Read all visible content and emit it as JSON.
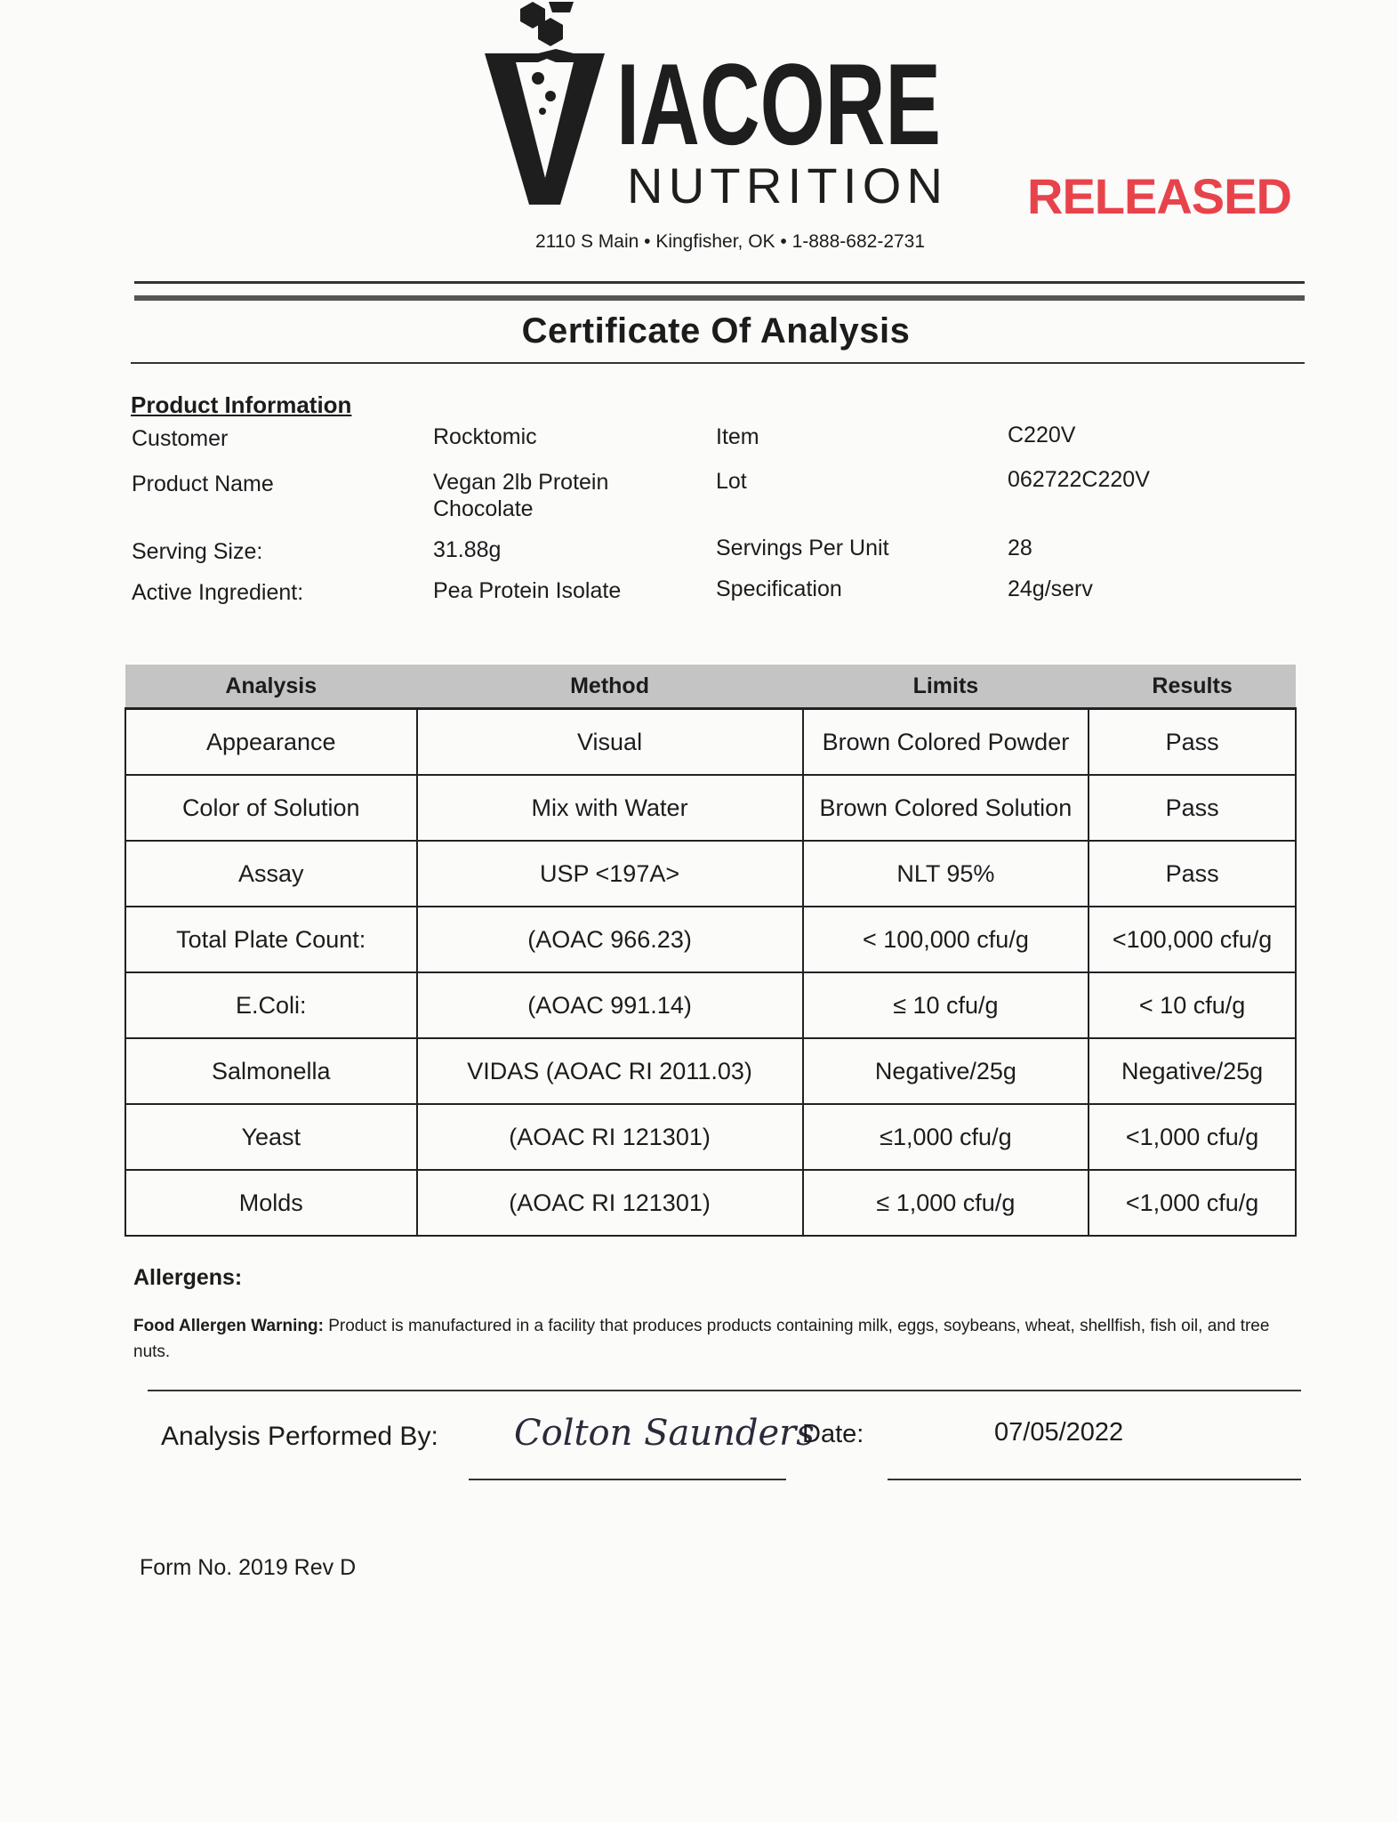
{
  "header": {
    "logo_text": "VIACORE NUTRITION",
    "stamp": "RELEASED",
    "stamp_color": "#e8434b",
    "address": "2110 S Main  •  Kingfisher, OK  •  1-888-682-2731"
  },
  "title": "Certificate Of Analysis",
  "product_info": {
    "heading": "Product Information",
    "rows": [
      {
        "label": "Customer",
        "value": "Rocktomic",
        "label2": "Item",
        "value2": "C220V"
      },
      {
        "label": "Product Name",
        "value": "Vegan 2lb Protein Chocolate",
        "label2": "Lot",
        "value2": "062722C220V"
      },
      {
        "label": "Serving Size:",
        "value": "31.88g",
        "label2": "Servings Per Unit",
        "value2": "28"
      },
      {
        "label": "Active Ingredient:",
        "value": "Pea Protein Isolate",
        "label2": "Specification",
        "value2": "24g/serv"
      }
    ]
  },
  "table": {
    "headers": [
      "Analysis",
      "Method",
      "Limits",
      "Results"
    ],
    "rows": [
      [
        "Appearance",
        "Visual",
        "Brown Colored Powder",
        "Pass"
      ],
      [
        "Color of Solution",
        "Mix with Water",
        "Brown Colored Solution",
        "Pass"
      ],
      [
        "Assay",
        "USP <197A>",
        "NLT 95%",
        "Pass"
      ],
      [
        "Total Plate Count:",
        "(AOAC 966.23)",
        "< 100,000 cfu/g",
        "<100,000 cfu/g"
      ],
      [
        "E.Coli:",
        "(AOAC 991.14)",
        "≤ 10 cfu/g",
        "< 10 cfu/g"
      ],
      [
        "Salmonella",
        "VIDAS (AOAC RI 2011.03)",
        "Negative/25g",
        "Negative/25g"
      ],
      [
        "Yeast",
        "(AOAC RI 121301)",
        "≤1,000 cfu/g",
        "<1,000 cfu/g"
      ],
      [
        "Molds",
        "(AOAC RI 121301)",
        "≤ 1,000 cfu/g",
        "<1,000  cfu/g"
      ]
    ]
  },
  "allergens": {
    "heading": "Allergens:",
    "warning_label": "Food Allergen Warning:",
    "warning_text": " Product is manufactured in a facility that produces products containing milk, eggs, soybeans, wheat, shellfish, fish oil, and tree nuts."
  },
  "signoff": {
    "performed_by_label": "Analysis Performed By:",
    "signature": "Colton Saunders",
    "date_label": "Date:",
    "date": "07/05/2022"
  },
  "form_no": "Form No. 2019 Rev D"
}
